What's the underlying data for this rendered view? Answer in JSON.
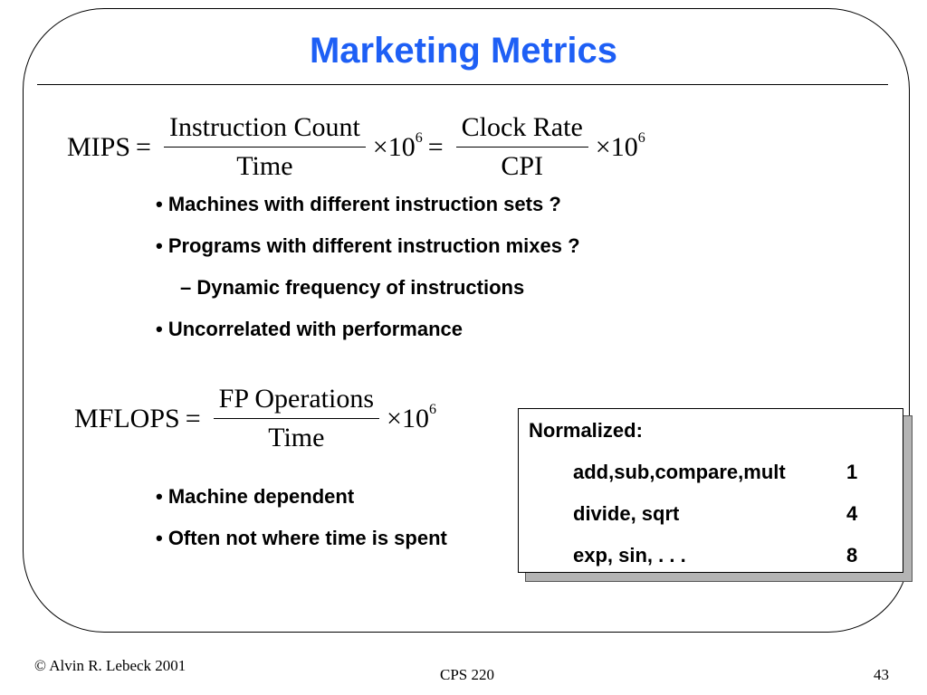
{
  "slide": {
    "title": "Marketing Metrics",
    "mips": {
      "lhs": "MIPS",
      "eq1": "=",
      "frac1_num": "Instruction Count",
      "frac1_den": "Time",
      "times1": "×10",
      "exp1": "6",
      "eq2": "=",
      "frac2_num": "Clock Rate",
      "frac2_den": "CPI",
      "times2": "×10",
      "exp2": "6"
    },
    "mips_bullets": [
      "• Machines with different instruction sets ?",
      "• Programs with different instruction mixes ?",
      "– Dynamic frequency of instructions",
      "• Uncorrelated with performance"
    ],
    "mflops": {
      "lhs": "MFLOPS",
      "eq": "=",
      "frac_num": "FP Operations",
      "frac_den": "Time",
      "times": "×10",
      "exp": "6"
    },
    "mflops_bullets": [
      "• Machine dependent",
      "• Often not where time is spent"
    ],
    "normalized_box": {
      "heading": "Normalized:",
      "rows": [
        {
          "op": "add,sub,compare,mult",
          "value": "1"
        },
        {
          "op": "divide, sqrt",
          "value": "4"
        },
        {
          "op": "exp, sin, . . .",
          "value": "8"
        }
      ]
    }
  },
  "footer": {
    "copyright": "© Alvin R. Lebeck 2001",
    "course": "CPS 220",
    "page": "43"
  }
}
